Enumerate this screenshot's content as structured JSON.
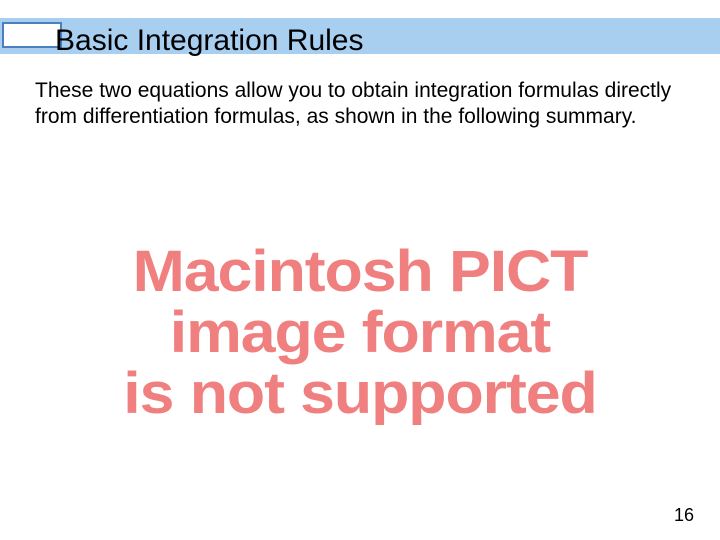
{
  "title": "Basic Integration Rules",
  "body": "These two equations allow you to obtain integration formulas directly from differentiation formulas, as shown in the following summary.",
  "error": {
    "line1": "Macintosh PICT",
    "line2": "image format",
    "line3": "is not supported",
    "color": "#f08080",
    "fontsize": 58,
    "fontweight": "bold"
  },
  "page_number": "16",
  "colors": {
    "title_bar_bg": "#a8cef0",
    "title_box_border": "#4a7fc0",
    "title_box_bg": "#ffffff",
    "background": "#ffffff",
    "text": "#000000"
  }
}
